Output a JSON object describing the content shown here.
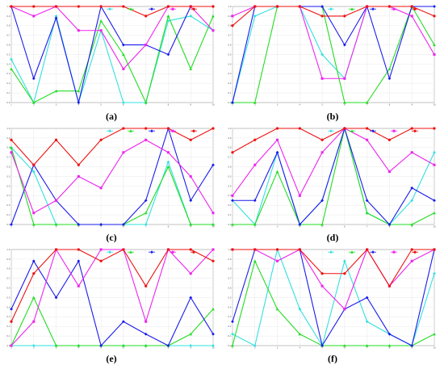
{
  "figure": {
    "caption_format": "parenthesized-letter"
  },
  "style": {
    "background": "#ffffff",
    "plot_border": "#9a9a9a",
    "grid": "#e2e2e2"
  },
  "series_colors": [
    "#33e0e0",
    "#22dd22",
    "#1a1aee",
    "#ee22ee",
    "#ee1111"
  ],
  "chart_data": [
    {
      "panel": "a",
      "caption": "(a)",
      "type": "line",
      "xlabel": "",
      "ylabel": "",
      "x": [
        1,
        2,
        3,
        4,
        5,
        6,
        7,
        8,
        9,
        10
      ],
      "ylim": [
        0,
        1
      ],
      "grid": true,
      "legend": "top-right",
      "series": [
        {
          "values": [
            0.45,
            0.0,
            0.9,
            0.0,
            0.75,
            0.0,
            0.0,
            0.85,
            0.9,
            0.75
          ]
        },
        {
          "values": [
            0.35,
            0.0,
            0.12,
            0.12,
            0.85,
            0.5,
            0.0,
            0.9,
            0.35,
            0.9
          ]
        },
        {
          "values": [
            1.0,
            0.25,
            0.88,
            0.0,
            1.0,
            0.6,
            0.6,
            0.5,
            1.0,
            1.0
          ]
        },
        {
          "values": [
            1.0,
            0.9,
            1.0,
            0.75,
            0.75,
            0.35,
            0.6,
            1.0,
            1.0,
            0.75
          ]
        },
        {
          "values": [
            1.0,
            1.0,
            1.0,
            1.0,
            1.0,
            1.0,
            0.9,
            1.0,
            1.0,
            1.0
          ]
        }
      ]
    },
    {
      "panel": "b",
      "caption": "(b)",
      "type": "line",
      "xlabel": "",
      "ylabel": "",
      "x": [
        1,
        2,
        3,
        4,
        5,
        6,
        7,
        8,
        9,
        10
      ],
      "ylim": [
        0,
        1
      ],
      "grid": true,
      "legend": "top-right",
      "series": [
        {
          "values": [
            0.0,
            0.9,
            1.0,
            1.0,
            0.5,
            0.25,
            1.0,
            1.0,
            1.0,
            1.0
          ]
        },
        {
          "values": [
            0.0,
            0.0,
            1.0,
            1.0,
            1.0,
            0.0,
            0.0,
            0.35,
            1.0,
            0.6
          ]
        },
        {
          "values": [
            0.0,
            1.0,
            1.0,
            1.0,
            1.0,
            0.6,
            1.0,
            0.25,
            1.0,
            1.0
          ]
        },
        {
          "values": [
            0.9,
            1.0,
            1.0,
            1.0,
            0.25,
            0.25,
            1.0,
            1.0,
            0.9,
            0.5
          ]
        },
        {
          "values": [
            0.8,
            1.0,
            1.0,
            1.0,
            0.9,
            0.9,
            1.0,
            1.0,
            1.0,
            0.9
          ]
        }
      ]
    },
    {
      "panel": "c",
      "caption": "(c)",
      "type": "line",
      "xlabel": "",
      "ylabel": "",
      "x": [
        1,
        2,
        3,
        4,
        5,
        6,
        7,
        8,
        9,
        10
      ],
      "ylim": [
        0,
        1
      ],
      "grid": true,
      "legend": "top-right",
      "series": [
        {
          "values": [
            0.8,
            0.55,
            0.0,
            0.0,
            0.0,
            0.0,
            0.0,
            0.65,
            0.0,
            0.0
          ]
        },
        {
          "values": [
            0.8,
            0.0,
            0.0,
            0.0,
            0.0,
            0.0,
            0.12,
            0.6,
            0.0,
            0.0
          ]
        },
        {
          "values": [
            0.0,
            0.62,
            0.25,
            0.0,
            0.0,
            0.0,
            0.25,
            1.0,
            0.25,
            0.62
          ]
        },
        {
          "values": [
            0.75,
            0.12,
            0.25,
            0.5,
            0.38,
            0.75,
            0.88,
            0.75,
            0.5,
            0.12
          ]
        },
        {
          "values": [
            0.88,
            0.62,
            0.88,
            0.62,
            0.88,
            1.0,
            1.0,
            1.0,
            0.88,
            1.0
          ]
        }
      ]
    },
    {
      "panel": "d",
      "caption": "(d)",
      "type": "line",
      "xlabel": "",
      "ylabel": "",
      "x": [
        1,
        2,
        3,
        4,
        5,
        6,
        7,
        8,
        9,
        10
      ],
      "ylim": [
        0,
        1
      ],
      "grid": true,
      "legend": "top-right",
      "series": [
        {
          "values": [
            0.25,
            0.0,
            0.75,
            0.0,
            0.25,
            1.0,
            0.12,
            0.0,
            0.25,
            0.75
          ]
        },
        {
          "values": [
            0.0,
            0.0,
            0.55,
            0.0,
            0.0,
            1.0,
            0.12,
            0.0,
            0.0,
            0.12
          ]
        },
        {
          "values": [
            0.25,
            0.25,
            0.75,
            0.0,
            0.25,
            1.0,
            0.25,
            0.0,
            0.38,
            0.25
          ]
        },
        {
          "values": [
            0.3,
            0.62,
            0.88,
            0.3,
            0.75,
            1.0,
            0.88,
            0.55,
            0.75,
            0.62
          ]
        },
        {
          "values": [
            0.75,
            0.88,
            1.0,
            1.0,
            0.88,
            1.0,
            1.0,
            0.88,
            1.0,
            1.0
          ]
        }
      ]
    },
    {
      "panel": "e",
      "caption": "(e)",
      "type": "line",
      "xlabel": "",
      "ylabel": "",
      "x": [
        1,
        2,
        3,
        4,
        5,
        6,
        7,
        8,
        9,
        10
      ],
      "ylim": [
        0,
        1
      ],
      "grid": true,
      "legend": "top-right",
      "series": [
        {
          "values": [
            0.0,
            0.0,
            0.0,
            0.0,
            0.0,
            0.0,
            0.0,
            0.0,
            0.0,
            0.0
          ]
        },
        {
          "values": [
            0.0,
            0.5,
            0.0,
            0.0,
            0.0,
            0.0,
            0.0,
            0.0,
            0.12,
            0.38
          ]
        },
        {
          "values": [
            0.38,
            0.88,
            0.5,
            0.88,
            0.0,
            0.25,
            0.12,
            0.0,
            0.5,
            0.12
          ]
        },
        {
          "values": [
            0.0,
            0.25,
            1.0,
            0.62,
            1.0,
            1.0,
            0.25,
            1.0,
            0.75,
            1.0
          ]
        },
        {
          "values": [
            0.25,
            0.75,
            1.0,
            1.0,
            0.88,
            1.0,
            0.62,
            1.0,
            1.0,
            0.88
          ]
        }
      ]
    },
    {
      "panel": "f",
      "caption": "(f)",
      "type": "line",
      "xlabel": "",
      "ylabel": "",
      "x": [
        1,
        2,
        3,
        4,
        5,
        6,
        7,
        8,
        9,
        10
      ],
      "ylim": [
        0,
        1
      ],
      "grid": true,
      "legend": "top-right",
      "series": [
        {
          "values": [
            0.12,
            0.0,
            1.0,
            0.38,
            0.0,
            0.88,
            0.25,
            0.12,
            0.0,
            0.75
          ]
        },
        {
          "values": [
            0.0,
            0.88,
            0.38,
            0.12,
            0.0,
            0.0,
            0.0,
            0.0,
            0.0,
            0.12
          ]
        },
        {
          "values": [
            0.25,
            1.0,
            1.0,
            1.0,
            0.0,
            0.38,
            0.5,
            0.12,
            0.0,
            1.0
          ]
        },
        {
          "values": [
            1.0,
            1.0,
            0.88,
            1.0,
            0.62,
            0.38,
            1.0,
            0.62,
            0.88,
            1.0
          ]
        },
        {
          "values": [
            1.0,
            1.0,
            1.0,
            1.0,
            0.75,
            0.75,
            1.0,
            0.62,
            1.0,
            1.0
          ]
        }
      ]
    }
  ]
}
